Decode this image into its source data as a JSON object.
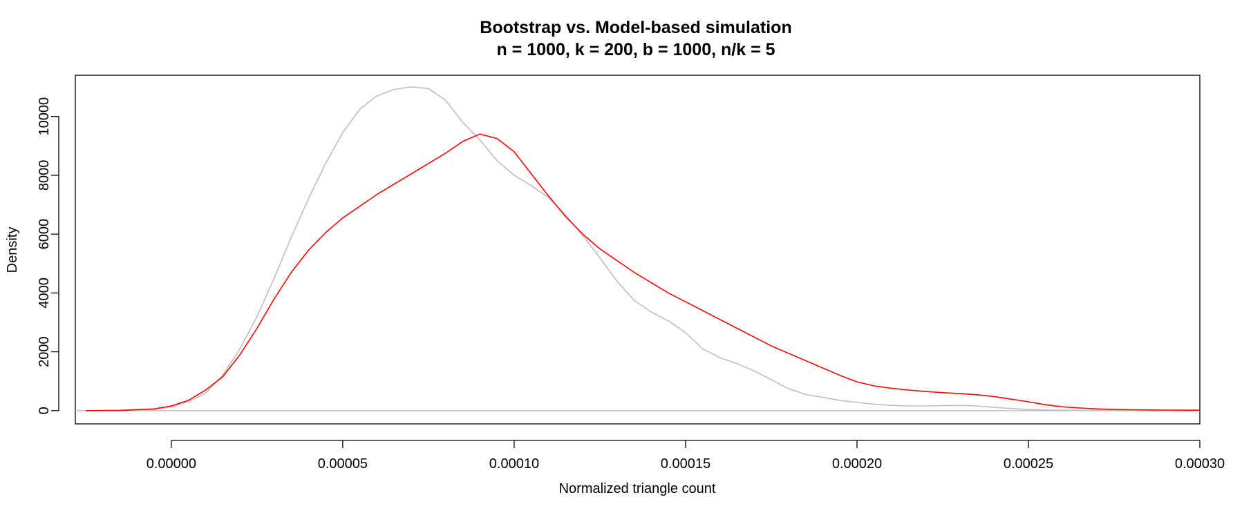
{
  "chart_data": {
    "type": "line",
    "title": "Bootstrap vs. Model-based simulation",
    "subtitle": "n = 1000, k = 200, b = 1000, n/k = 5",
    "xlabel": "Normalized triangle count",
    "ylabel": "Density",
    "xlim": [
      -2.8e-05,
      0.0003
    ],
    "ylim": [
      -450,
      11400
    ],
    "x_ticks": [
      0,
      5e-05,
      0.0001,
      0.00015,
      0.0002,
      0.00025,
      0.0003
    ],
    "x_tick_labels": [
      "0.00000",
      "0.00005",
      "0.00010",
      "0.00015",
      "0.00020",
      "0.00025",
      "0.00030"
    ],
    "y_ticks": [
      0,
      2000,
      4000,
      6000,
      8000,
      10000
    ],
    "y_tick_labels": [
      "0",
      "2000",
      "4000",
      "6000",
      "8000",
      "10000"
    ],
    "baseline_y": 0,
    "baseline_color": "#bebebe",
    "grid": false,
    "legend": "none",
    "series": [
      {
        "color": "#bebebe",
        "points": [
          [
            -2.5e-05,
            0
          ],
          [
            -1.5e-05,
            10
          ],
          [
            -5e-06,
            40
          ],
          [
            0,
            120
          ],
          [
            5e-06,
            300
          ],
          [
            1e-05,
            600
          ],
          [
            1.5e-05,
            1200
          ],
          [
            2e-05,
            2100
          ],
          [
            2.5e-05,
            3200
          ],
          [
            3e-05,
            4500
          ],
          [
            3.5e-05,
            5900
          ],
          [
            4e-05,
            7200
          ],
          [
            4.5e-05,
            8400
          ],
          [
            5e-05,
            9450
          ],
          [
            5.5e-05,
            10250
          ],
          [
            6e-05,
            10700
          ],
          [
            6.5e-05,
            10920
          ],
          [
            7e-05,
            11000
          ],
          [
            7.5e-05,
            10950
          ],
          [
            8e-05,
            10550
          ],
          [
            8.5e-05,
            9800
          ],
          [
            9e-05,
            9200
          ],
          [
            9.5e-05,
            8500
          ],
          [
            0.0001,
            8000
          ],
          [
            0.000105,
            7650
          ],
          [
            0.00011,
            7250
          ],
          [
            0.000115,
            6650
          ],
          [
            0.00012,
            5950
          ],
          [
            0.000125,
            5200
          ],
          [
            0.00013,
            4400
          ],
          [
            0.000135,
            3750
          ],
          [
            0.00014,
            3350
          ],
          [
            0.000145,
            3050
          ],
          [
            0.00015,
            2650
          ],
          [
            0.000155,
            2100
          ],
          [
            0.00016,
            1800
          ],
          [
            0.000165,
            1600
          ],
          [
            0.00017,
            1350
          ],
          [
            0.000175,
            1050
          ],
          [
            0.00018,
            750
          ],
          [
            0.000185,
            550
          ],
          [
            0.00019,
            450
          ],
          [
            0.000195,
            350
          ],
          [
            0.0002,
            280
          ],
          [
            0.000205,
            220
          ],
          [
            0.00021,
            180
          ],
          [
            0.000215,
            160
          ],
          [
            0.00022,
            160
          ],
          [
            0.000225,
            170
          ],
          [
            0.00023,
            180
          ],
          [
            0.000235,
            160
          ],
          [
            0.00024,
            110
          ],
          [
            0.000245,
            70
          ],
          [
            0.00025,
            40
          ],
          [
            0.000255,
            25
          ],
          [
            0.00026,
            15
          ],
          [
            0.000265,
            10
          ],
          [
            0.00027,
            5
          ],
          [
            0.00028,
            2
          ],
          [
            0.0003,
            0
          ]
        ]
      },
      {
        "color": "#ff0000",
        "points": [
          [
            -2.5e-05,
            0
          ],
          [
            -1.5e-05,
            10
          ],
          [
            -5e-06,
            60
          ],
          [
            0,
            160
          ],
          [
            5e-06,
            350
          ],
          [
            1e-05,
            700
          ],
          [
            1.5e-05,
            1150
          ],
          [
            2e-05,
            1900
          ],
          [
            2.5e-05,
            2800
          ],
          [
            3e-05,
            3800
          ],
          [
            3.5e-05,
            4700
          ],
          [
            4e-05,
            5450
          ],
          [
            4.5e-05,
            6050
          ],
          [
            5e-05,
            6550
          ],
          [
            5.5e-05,
            6950
          ],
          [
            6e-05,
            7350
          ],
          [
            6.5e-05,
            7700
          ],
          [
            7e-05,
            8050
          ],
          [
            7.5e-05,
            8400
          ],
          [
            8e-05,
            8750
          ],
          [
            8.5e-05,
            9150
          ],
          [
            9e-05,
            9400
          ],
          [
            9.5e-05,
            9250
          ],
          [
            0.0001,
            8800
          ],
          [
            0.000105,
            8050
          ],
          [
            0.00011,
            7300
          ],
          [
            0.000115,
            6600
          ],
          [
            0.00012,
            6000
          ],
          [
            0.000125,
            5500
          ],
          [
            0.00013,
            5100
          ],
          [
            0.000135,
            4700
          ],
          [
            0.00014,
            4350
          ],
          [
            0.000145,
            4000
          ],
          [
            0.00015,
            3700
          ],
          [
            0.000155,
            3400
          ],
          [
            0.00016,
            3100
          ],
          [
            0.000165,
            2800
          ],
          [
            0.00017,
            2500
          ],
          [
            0.000175,
            2200
          ],
          [
            0.00018,
            1950
          ],
          [
            0.000185,
            1700
          ],
          [
            0.00019,
            1450
          ],
          [
            0.000195,
            1200
          ],
          [
            0.0002,
            980
          ],
          [
            0.000205,
            840
          ],
          [
            0.00021,
            760
          ],
          [
            0.000215,
            700
          ],
          [
            0.00022,
            650
          ],
          [
            0.000225,
            610
          ],
          [
            0.00023,
            580
          ],
          [
            0.000235,
            540
          ],
          [
            0.00024,
            480
          ],
          [
            0.000245,
            390
          ],
          [
            0.00025,
            300
          ],
          [
            0.000255,
            200
          ],
          [
            0.00026,
            130
          ],
          [
            0.000265,
            90
          ],
          [
            0.00027,
            60
          ],
          [
            0.000275,
            40
          ],
          [
            0.00028,
            30
          ],
          [
            0.000285,
            25
          ],
          [
            0.00029,
            20
          ],
          [
            0.0003,
            15
          ]
        ]
      }
    ]
  }
}
